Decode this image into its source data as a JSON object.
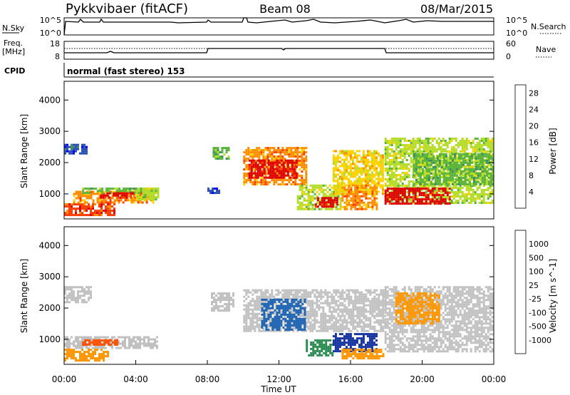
{
  "header": {
    "station": "Pykkvibaer (fitACF)",
    "beam": "Beam 08",
    "date": "08/Mar/2015"
  },
  "strips": {
    "nsky_label": "N.Sky",
    "nsky_ticks": [
      "10^5",
      "10^0"
    ],
    "nsearch_label": "N.Search",
    "nsearch_ticks": [
      "10^5",
      "10^0"
    ],
    "freq_label_1": "Freq.",
    "freq_label_2": "[MHz]",
    "freq_ticks": [
      "18",
      "8"
    ],
    "nave_label": "Nave",
    "nave_ticks": [
      "60",
      "0"
    ],
    "cpid_label": "CPID",
    "cpid_text": "normal (fast stereo) 153"
  },
  "colors": {
    "power_scale": [
      "#0000ff",
      "#2850b4",
      "#3c8c64",
      "#5ab43c",
      "#b4dc28",
      "#ffd200",
      "#ff8c00",
      "#ff3c00",
      "#dc0000"
    ],
    "velocity_scale": [
      "#dc0000",
      "#ff5000",
      "#ff9600",
      "#ffc800",
      "#c8c8c8",
      "#78c850",
      "#288c50",
      "#1e64b4",
      "#1432a0"
    ],
    "ground_scatter": "#c0c0c0"
  },
  "chart_data": [
    {
      "type": "heatmap",
      "name_key": "power",
      "xlabel": "",
      "ylabel": "Slant Range [km]",
      "xlim": [
        "00:00",
        "24:00"
      ],
      "ylim": [
        200,
        4600
      ],
      "y_ticks": [
        "1000",
        "2000",
        "3000",
        "4000"
      ],
      "colorbar": {
        "label": "Power [dB]",
        "ticks": [
          "4",
          "8",
          "12",
          "16",
          "20",
          "24",
          "28"
        ],
        "range": [
          0,
          30
        ]
      },
      "regions": [
        {
          "t0": 0.0,
          "t1": 1.2,
          "r0": 2300,
          "r1": 2600,
          "level": 6
        },
        {
          "t0": 0.0,
          "t1": 2.8,
          "r0": 300,
          "r1": 700,
          "level": 26
        },
        {
          "t0": 0.5,
          "t1": 5.0,
          "r0": 700,
          "r1": 1100,
          "level": 20
        },
        {
          "t0": 1.0,
          "t1": 5.2,
          "r0": 1000,
          "r1": 1200,
          "level": 10
        },
        {
          "t0": 2.0,
          "t1": 4.5,
          "r0": 900,
          "r1": 1050,
          "level": 28
        },
        {
          "t0": 4.0,
          "t1": 5.2,
          "r0": 800,
          "r1": 1200,
          "level": 14
        },
        {
          "t0": 8.0,
          "t1": 8.6,
          "r0": 1000,
          "r1": 1200,
          "level": 6
        },
        {
          "t0": 8.3,
          "t1": 9.2,
          "r0": 2100,
          "r1": 2500,
          "level": 10
        },
        {
          "t0": 10.0,
          "t1": 13.5,
          "r0": 1300,
          "r1": 2500,
          "level": 20
        },
        {
          "t0": 10.3,
          "t1": 13.0,
          "r0": 1500,
          "r1": 2100,
          "level": 28
        },
        {
          "t0": 13.0,
          "t1": 15.5,
          "r0": 500,
          "r1": 1300,
          "level": 14
        },
        {
          "t0": 14.0,
          "t1": 15.3,
          "r0": 600,
          "r1": 900,
          "level": 28
        },
        {
          "t0": 15.0,
          "t1": 17.8,
          "r0": 1000,
          "r1": 2400,
          "level": 18
        },
        {
          "t0": 15.5,
          "t1": 17.5,
          "r0": 500,
          "r1": 1300,
          "level": 20
        },
        {
          "t0": 17.9,
          "t1": 24.0,
          "r0": 700,
          "r1": 2800,
          "level": 16
        },
        {
          "t0": 17.9,
          "t1": 21.5,
          "r0": 700,
          "r1": 1200,
          "level": 28
        },
        {
          "t0": 19.5,
          "t1": 24.0,
          "r0": 1300,
          "r1": 2300,
          "level": 12
        }
      ]
    },
    {
      "type": "heatmap",
      "name_key": "velocity",
      "xlabel": "Time UT",
      "ylabel": "Slant Range [km]",
      "xlim": [
        "00:00",
        "24:00"
      ],
      "ylim": [
        200,
        4600
      ],
      "x_ticks": [
        "00:00",
        "04:00",
        "08:00",
        "12:00",
        "16:00",
        "20:00",
        "00:00"
      ],
      "y_ticks": [
        "1000",
        "2000",
        "3000",
        "4000"
      ],
      "colorbar": {
        "label": "Velocity [m s^-1]",
        "ticks": [
          "1000",
          "500",
          "100",
          "25",
          "-25",
          "-100",
          "-500",
          "-1000"
        ]
      },
      "regions": [
        {
          "t0": 0.0,
          "t1": 1.5,
          "r0": 2200,
          "r1": 2700,
          "class": "gs"
        },
        {
          "t0": 0.0,
          "t1": 5.2,
          "r0": 700,
          "r1": 1100,
          "class": "gs"
        },
        {
          "t0": 0.0,
          "t1": 2.5,
          "r0": 300,
          "r1": 700,
          "class": "-100"
        },
        {
          "t0": 1.0,
          "t1": 3.0,
          "r0": 800,
          "r1": 1000,
          "class": "-500"
        },
        {
          "t0": 8.2,
          "t1": 9.5,
          "r0": 1900,
          "r1": 2500,
          "class": "gs"
        },
        {
          "t0": 10.0,
          "t1": 17.9,
          "r0": 1300,
          "r1": 2600,
          "class": "gs"
        },
        {
          "t0": 11.0,
          "t1": 13.5,
          "r0": 1300,
          "r1": 2300,
          "class": "500"
        },
        {
          "t0": 13.5,
          "t1": 15.0,
          "r0": 500,
          "r1": 1000,
          "class": "100"
        },
        {
          "t0": 15.0,
          "t1": 17.5,
          "r0": 600,
          "r1": 1200,
          "class": "1000"
        },
        {
          "t0": 15.5,
          "t1": 17.8,
          "r0": 400,
          "r1": 700,
          "class": "-100"
        },
        {
          "t0": 17.9,
          "t1": 24.0,
          "r0": 600,
          "r1": 2700,
          "class": "gs"
        },
        {
          "t0": 18.5,
          "t1": 21.0,
          "r0": 1500,
          "r1": 2500,
          "class": "-100"
        }
      ]
    }
  ]
}
